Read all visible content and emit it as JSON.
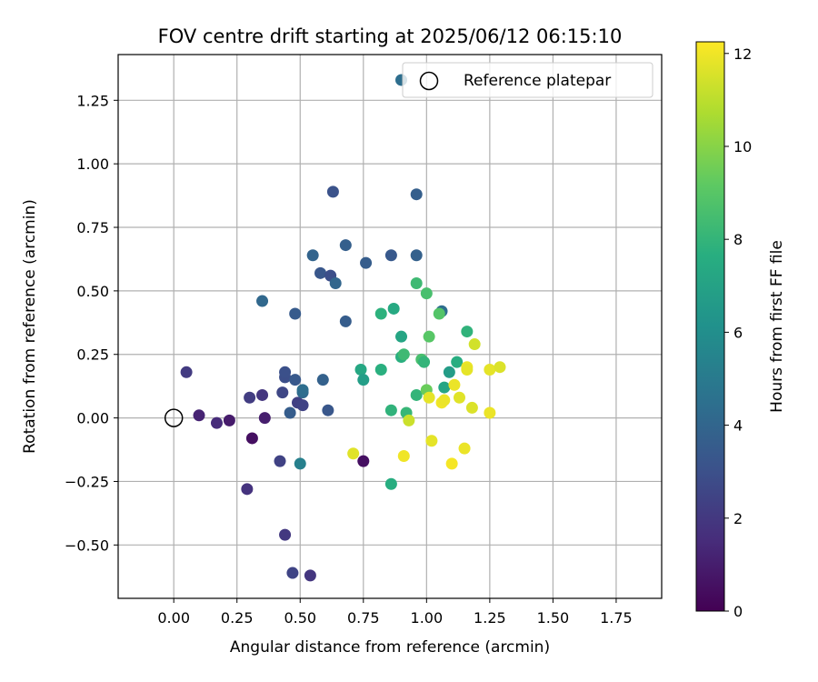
{
  "chart_data": {
    "type": "scatter",
    "title": "FOV centre drift starting at 2025/06/12 06:15:10",
    "xlabel": "Angular distance from reference (arcmin)",
    "ylabel": "Rotation from reference (arcmin)",
    "colorbar_label": "Hours from first FF file",
    "xlim": [
      -0.22,
      1.93
    ],
    "ylim": [
      -0.71,
      1.43
    ],
    "x_ticks": [
      "0.00",
      "0.25",
      "0.50",
      "0.75",
      "1.00",
      "1.25",
      "1.50",
      "1.75"
    ],
    "x_tick_values": [
      0,
      0.25,
      0.5,
      0.75,
      1.0,
      1.25,
      1.5,
      1.75
    ],
    "y_ticks": [
      "−0.50",
      "−0.25",
      "0.00",
      "0.25",
      "0.50",
      "0.75",
      "1.00",
      "1.25"
    ],
    "y_tick_values": [
      -0.5,
      -0.25,
      0,
      0.25,
      0.5,
      0.75,
      1.0,
      1.25
    ],
    "colorbar_ticks": [
      "0",
      "2",
      "4",
      "6",
      "8",
      "10",
      "12"
    ],
    "colorbar_tick_values": [
      0,
      2,
      4,
      6,
      8,
      10,
      12
    ],
    "colorbar_range": [
      0,
      12.25
    ],
    "colormap": "viridis",
    "grid": true,
    "legend": {
      "position": "top-right",
      "entries": [
        "Reference platepar"
      ]
    },
    "reference": {
      "x": 0.0,
      "y": 0.0,
      "label": "Reference platepar"
    },
    "points": [
      {
        "x": 0.1,
        "y": 0.01,
        "h": 1.2
      },
      {
        "x": 0.17,
        "y": -0.02,
        "h": 1.5
      },
      {
        "x": 0.22,
        "y": -0.01,
        "h": 0.9
      },
      {
        "x": 0.31,
        "y": -0.08,
        "h": 0.5
      },
      {
        "x": 0.36,
        "y": 0.0,
        "h": 1.0
      },
      {
        "x": 0.75,
        "y": -0.17,
        "h": 0.5
      },
      {
        "x": 0.05,
        "y": 0.18,
        "h": 2.1
      },
      {
        "x": 0.29,
        "y": -0.28,
        "h": 1.8
      },
      {
        "x": 0.3,
        "y": 0.08,
        "h": 2.2
      },
      {
        "x": 0.35,
        "y": 0.09,
        "h": 1.9
      },
      {
        "x": 0.42,
        "y": -0.17,
        "h": 2.4
      },
      {
        "x": 0.44,
        "y": -0.46,
        "h": 2.0
      },
      {
        "x": 0.47,
        "y": -0.61,
        "h": 2.5
      },
      {
        "x": 0.54,
        "y": -0.62,
        "h": 1.9
      },
      {
        "x": 0.43,
        "y": 0.1,
        "h": 2.6
      },
      {
        "x": 0.49,
        "y": 0.06,
        "h": 2.3
      },
      {
        "x": 0.51,
        "y": 0.05,
        "h": 2.4
      },
      {
        "x": 0.44,
        "y": 0.16,
        "h": 2.9
      },
      {
        "x": 0.44,
        "y": 0.18,
        "h": 3.0
      },
      {
        "x": 0.48,
        "y": 0.15,
        "h": 3.4
      },
      {
        "x": 0.46,
        "y": 0.02,
        "h": 3.6
      },
      {
        "x": 0.51,
        "y": 0.1,
        "h": 4.2
      },
      {
        "x": 0.51,
        "y": 0.11,
        "h": 4.4
      },
      {
        "x": 0.59,
        "y": 0.15,
        "h": 3.8
      },
      {
        "x": 0.61,
        "y": 0.03,
        "h": 3.3
      },
      {
        "x": 0.5,
        "y": -0.18,
        "h": 5.3
      },
      {
        "x": 0.35,
        "y": 0.46,
        "h": 4.1
      },
      {
        "x": 0.48,
        "y": 0.41,
        "h": 3.5
      },
      {
        "x": 0.55,
        "y": 0.64,
        "h": 3.9
      },
      {
        "x": 0.58,
        "y": 0.57,
        "h": 3.3
      },
      {
        "x": 0.62,
        "y": 0.56,
        "h": 2.9
      },
      {
        "x": 0.64,
        "y": 0.53,
        "h": 4.0
      },
      {
        "x": 0.63,
        "y": 0.89,
        "h": 3.1
      },
      {
        "x": 0.68,
        "y": 0.68,
        "h": 3.7
      },
      {
        "x": 0.68,
        "y": 0.38,
        "h": 3.6
      },
      {
        "x": 0.76,
        "y": 0.61,
        "h": 3.6
      },
      {
        "x": 0.86,
        "y": 0.64,
        "h": 3.4
      },
      {
        "x": 0.96,
        "y": 0.88,
        "h": 3.7
      },
      {
        "x": 0.96,
        "y": 0.64,
        "h": 3.8
      },
      {
        "x": 0.9,
        "y": 1.33,
        "h": 4.4
      },
      {
        "x": 1.06,
        "y": 0.42,
        "h": 4.4
      },
      {
        "x": 0.74,
        "y": 0.19,
        "h": 7.3
      },
      {
        "x": 0.75,
        "y": 0.15,
        "h": 6.8
      },
      {
        "x": 0.82,
        "y": 0.19,
        "h": 7.7
      },
      {
        "x": 0.82,
        "y": 0.41,
        "h": 7.8
      },
      {
        "x": 0.87,
        "y": 0.43,
        "h": 7.4
      },
      {
        "x": 0.9,
        "y": 0.32,
        "h": 7.2
      },
      {
        "x": 0.9,
        "y": 0.24,
        "h": 7.7
      },
      {
        "x": 0.91,
        "y": 0.25,
        "h": 8.3
      },
      {
        "x": 0.86,
        "y": 0.03,
        "h": 7.9
      },
      {
        "x": 0.92,
        "y": 0.02,
        "h": 8.1
      },
      {
        "x": 0.86,
        "y": -0.26,
        "h": 7.6
      },
      {
        "x": 0.96,
        "y": 0.09,
        "h": 8.0
      },
      {
        "x": 0.96,
        "y": 0.53,
        "h": 8.3
      },
      {
        "x": 0.98,
        "y": 0.23,
        "h": 8.6
      },
      {
        "x": 0.99,
        "y": 0.22,
        "h": 8.0
      },
      {
        "x": 1.0,
        "y": 0.49,
        "h": 8.6
      },
      {
        "x": 1.0,
        "y": 0.11,
        "h": 9.4
      },
      {
        "x": 1.01,
        "y": 0.32,
        "h": 9.0
      },
      {
        "x": 1.05,
        "y": 0.41,
        "h": 8.9
      },
      {
        "x": 1.07,
        "y": 0.12,
        "h": 7.2
      },
      {
        "x": 1.09,
        "y": 0.18,
        "h": 6.7
      },
      {
        "x": 1.12,
        "y": 0.22,
        "h": 7.6
      },
      {
        "x": 1.16,
        "y": 0.34,
        "h": 7.9
      },
      {
        "x": 1.01,
        "y": 0.08,
        "h": 11.8
      },
      {
        "x": 1.06,
        "y": 0.06,
        "h": 12.0
      },
      {
        "x": 1.07,
        "y": 0.07,
        "h": 11.9
      },
      {
        "x": 1.11,
        "y": 0.13,
        "h": 11.9
      },
      {
        "x": 1.13,
        "y": 0.08,
        "h": 11.7
      },
      {
        "x": 1.16,
        "y": 0.2,
        "h": 11.9
      },
      {
        "x": 1.16,
        "y": 0.19,
        "h": 11.8
      },
      {
        "x": 1.18,
        "y": 0.04,
        "h": 11.6
      },
      {
        "x": 1.19,
        "y": 0.29,
        "h": 11.4
      },
      {
        "x": 1.25,
        "y": 0.19,
        "h": 11.8
      },
      {
        "x": 1.25,
        "y": 0.02,
        "h": 11.9
      },
      {
        "x": 1.29,
        "y": 0.2,
        "h": 11.6
      },
      {
        "x": 0.93,
        "y": -0.01,
        "h": 11.3
      },
      {
        "x": 0.71,
        "y": -0.14,
        "h": 11.7
      },
      {
        "x": 0.91,
        "y": -0.15,
        "h": 12.0
      },
      {
        "x": 1.02,
        "y": -0.09,
        "h": 11.8
      },
      {
        "x": 1.1,
        "y": -0.18,
        "h": 12.1
      },
      {
        "x": 1.15,
        "y": -0.12,
        "h": 11.9
      }
    ]
  }
}
